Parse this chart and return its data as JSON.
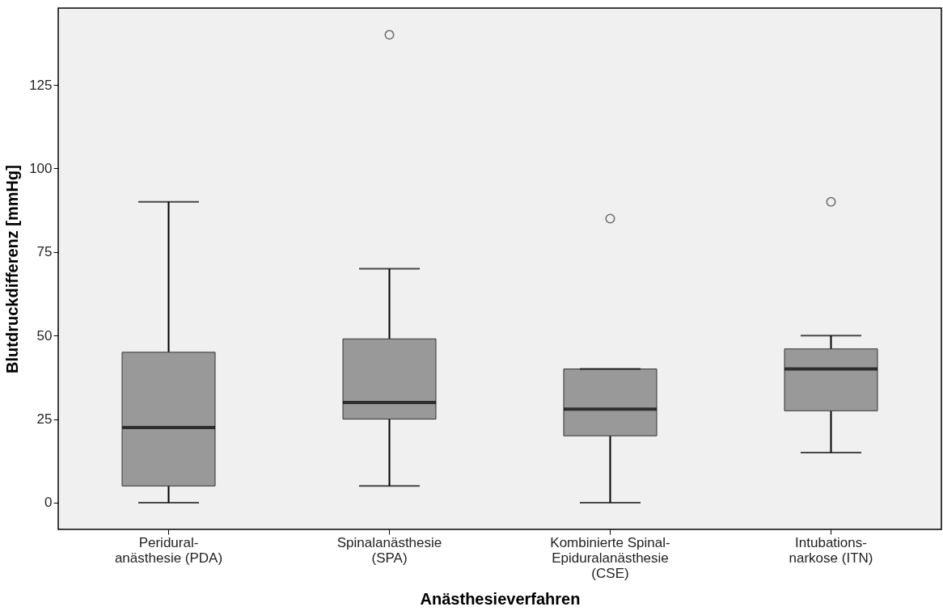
{
  "chart_data": {
    "type": "box",
    "xlabel": "Anästhesieverfahren",
    "ylabel": "Blutdruckdifferenz [mmHg]",
    "categories": [
      "Peridural-\nanästhesie (PDA)",
      "Spinalanästhesie\n(SPA)",
      "Kombinierte Spinal-\nEpiduralanästhesie\n(CSE)",
      "Intubations-\nnarkose (ITN)"
    ],
    "color": "#999999",
    "boxes": [
      {
        "low": 0,
        "q1": 5,
        "median": 22.5,
        "q3": 45,
        "high": 90
      },
      {
        "low": 5,
        "q1": 25,
        "median": 30,
        "q3": 49,
        "high": 70,
        "outliers": [
          140
        ]
      },
      {
        "low": 0,
        "q1": 20,
        "median": 28,
        "q3": 40,
        "high": 40,
        "outliers": [
          85
        ]
      },
      {
        "low": 15,
        "q1": 27.5,
        "median": 40,
        "q3": 46,
        "high": 50,
        "outliers": [
          90
        ]
      }
    ],
    "ylim": [
      -8,
      148
    ],
    "yticks": [
      0,
      25,
      50,
      75,
      100,
      125
    ],
    "grid": false
  }
}
